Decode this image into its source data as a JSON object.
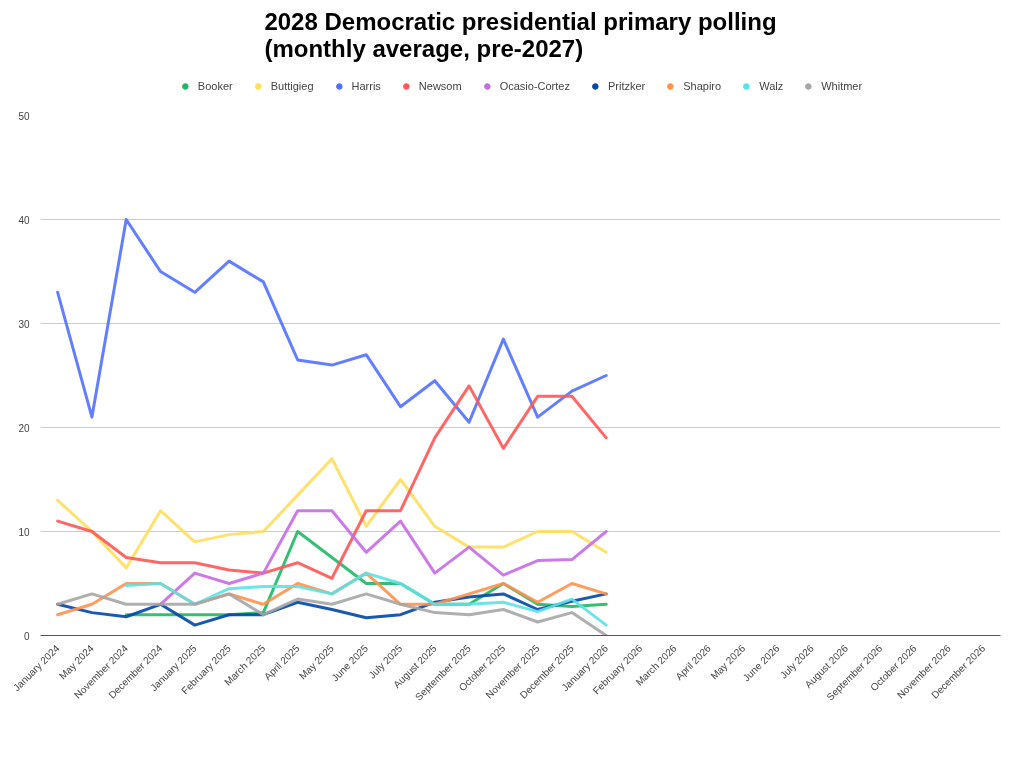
{
  "chart_data": {
    "type": "line",
    "title": "2028 Democratic presidential primary polling\n(monthly average, pre-2027)",
    "categories": [
      "January 2024",
      "May 2024",
      "November 2024",
      "December 2024",
      "January 2025",
      "February 2025",
      "March 2025",
      "April 2025",
      "May 2025",
      "June 2025",
      "July 2025",
      "August 2025",
      "September 2025",
      "October 2025",
      "November 2025",
      "December 2025",
      "January 2026",
      "February 2026",
      "March 2026",
      "April 2026",
      "May 2026",
      "June 2026",
      "July 2026",
      "August 2026",
      "September 2026",
      "October 2026",
      "November 2026",
      "December 2026"
    ],
    "series": [
      {
        "name": "Booker",
        "color": "#1fb866",
        "values": [
          null,
          null,
          2,
          2,
          2,
          2,
          2.2,
          10,
          7.5,
          5,
          5,
          3,
          3,
          5,
          3,
          2.8,
          3,
          null,
          null,
          null,
          null,
          null,
          null,
          null,
          null,
          null,
          null,
          null
        ]
      },
      {
        "name": "Buttigieg",
        "color": "#ffdf5d",
        "values": [
          13,
          10,
          6.5,
          12,
          9,
          9.7,
          10,
          13.5,
          17,
          10.5,
          15,
          10.5,
          8.5,
          8.5,
          10,
          10,
          8,
          null,
          null,
          null,
          null,
          null,
          null,
          null,
          null,
          null,
          null,
          null
        ]
      },
      {
        "name": "Harris",
        "color": "#5271ff",
        "values": [
          33,
          21,
          40,
          35,
          33,
          36,
          34,
          26.5,
          26,
          27,
          22,
          24.5,
          20.5,
          28.5,
          21,
          23.5,
          25,
          null,
          null,
          null,
          null,
          null,
          null,
          null,
          null,
          null,
          null,
          null
        ]
      },
      {
        "name": "Newsom",
        "color": "#ff5757",
        "values": [
          11,
          10,
          7.5,
          7,
          7,
          6.3,
          6,
          7,
          5.5,
          12,
          12,
          19,
          24,
          18,
          23,
          23,
          19,
          null,
          null,
          null,
          null,
          null,
          null,
          null,
          null,
          null,
          null,
          null
        ]
      },
      {
        "name": "Ocasio-Cortez",
        "color": "#c66ce6",
        "values": [
          null,
          null,
          null,
          3,
          6,
          5,
          6,
          12,
          12,
          8,
          11,
          6,
          8.5,
          5.8,
          7.2,
          7.3,
          10,
          null,
          null,
          null,
          null,
          null,
          null,
          null,
          null,
          null,
          null,
          null
        ]
      },
      {
        "name": "Pritzker",
        "color": "#0047ab",
        "values": [
          3,
          2.2,
          1.8,
          3,
          1,
          2,
          2,
          3.2,
          2.5,
          1.7,
          2,
          3.2,
          3.7,
          4,
          2.5,
          3.3,
          4,
          null,
          null,
          null,
          null,
          null,
          null,
          null,
          null,
          null,
          null,
          null
        ]
      },
      {
        "name": "Shapiro",
        "color": "#ff914d",
        "values": [
          2,
          3,
          5,
          5,
          3,
          4,
          3,
          5,
          4,
          6,
          3,
          3,
          4,
          5,
          3.2,
          5,
          4,
          null,
          null,
          null,
          null,
          null,
          null,
          null,
          null,
          null,
          null,
          null
        ]
      },
      {
        "name": "Walz",
        "color": "#5ce1e6",
        "values": [
          null,
          null,
          4.8,
          5,
          3,
          4.5,
          4.7,
          4.7,
          4,
          6,
          5,
          3,
          3,
          3.2,
          2.3,
          3.5,
          1,
          null,
          null,
          null,
          null,
          null,
          null,
          null,
          null,
          null,
          null,
          null
        ]
      },
      {
        "name": "Whitmer",
        "color": "#a6a6a6",
        "values": [
          3,
          4,
          3,
          3,
          3,
          4,
          2,
          3.5,
          3,
          4,
          3,
          2.2,
          2,
          2.5,
          1.3,
          2.2,
          0,
          null,
          null,
          null,
          null,
          null,
          null,
          null,
          null,
          null,
          null,
          null
        ]
      }
    ],
    "ylim": [
      0,
      50
    ],
    "yticks": [
      0,
      10,
      20,
      30,
      40,
      50
    ],
    "grid": "y",
    "legend": "top",
    "line_style": "solid"
  }
}
